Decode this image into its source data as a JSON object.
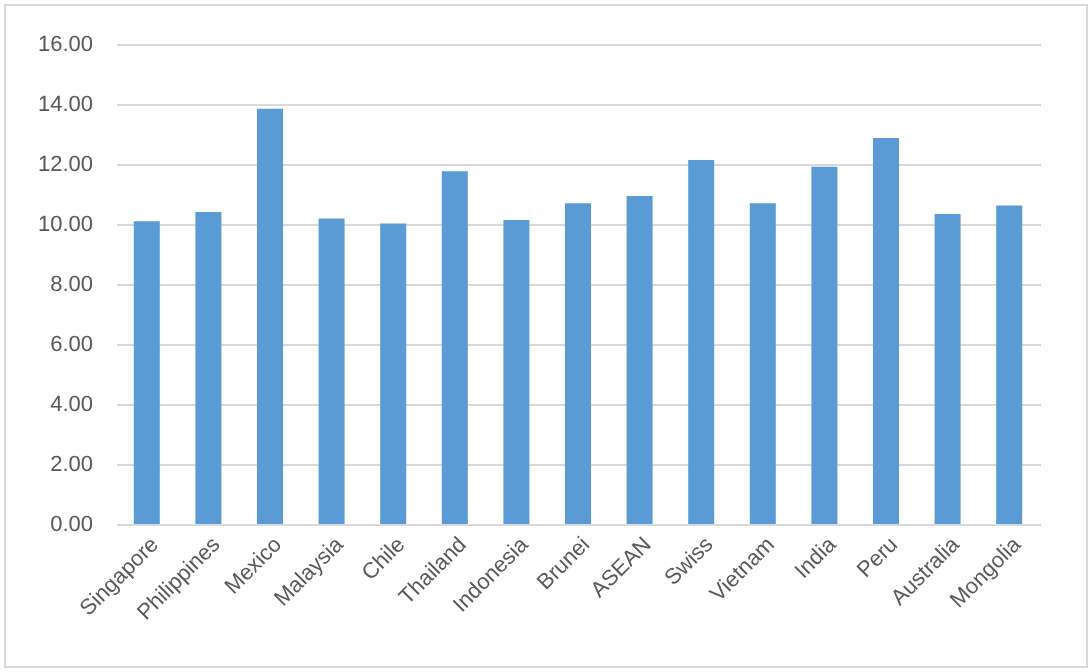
{
  "chart_data": {
    "type": "bar",
    "categories": [
      "Singapore",
      "Philippines",
      "Mexico",
      "Malaysia",
      "Chile",
      "Thailand",
      "Indonesia",
      "Brunei",
      "ASEAN",
      "Swiss",
      "Vietnam",
      "India",
      "Peru",
      "Australia",
      "Mongolia"
    ],
    "values": [
      10.09,
      10.4,
      13.84,
      10.18,
      10.02,
      11.76,
      10.13,
      10.69,
      10.93,
      12.13,
      10.69,
      11.91,
      12.87,
      10.33,
      10.62
    ],
    "color": "#5b9bd5",
    "ylim": [
      0,
      16
    ],
    "yticks": [
      {
        "value": 0,
        "label": "0.00"
      },
      {
        "value": 2,
        "label": "2.00"
      },
      {
        "value": 4,
        "label": "4.00"
      },
      {
        "value": 6,
        "label": "6.00"
      },
      {
        "value": 8,
        "label": "8.00"
      },
      {
        "value": 10,
        "label": "10.00"
      },
      {
        "value": 12,
        "label": "12.00"
      },
      {
        "value": 14,
        "label": "14.00"
      },
      {
        "value": 16,
        "label": "16.00"
      }
    ],
    "grid": "y"
  }
}
